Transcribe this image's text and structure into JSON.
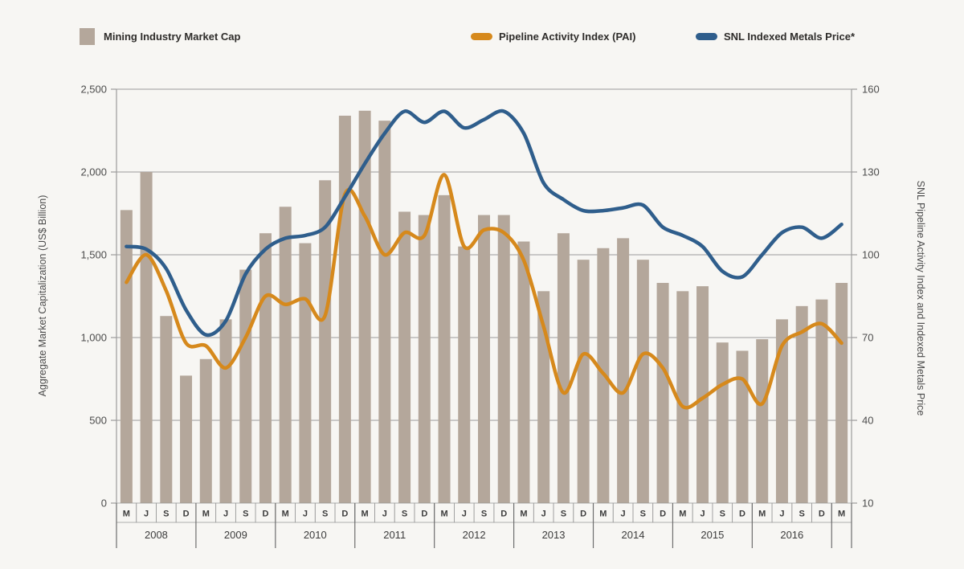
{
  "legend": {
    "items": [
      {
        "label": "Mining Industry Market Cap",
        "swatch": "square",
        "color": "#b4a79b"
      },
      {
        "label": "Pipeline Activity Index (PAI)",
        "swatch": "line",
        "color": "#d6891c"
      },
      {
        "label": "SNL Indexed Metals Price*",
        "swatch": "line",
        "color": "#2f5e8c"
      }
    ]
  },
  "axes": {
    "left": {
      "title": "Aggregate Market Capitalization (US$ Billion)",
      "tick_labels": [
        "2,500",
        "2,000",
        "1,500",
        "1,000",
        "500",
        "0"
      ],
      "tick_values": [
        2500,
        2000,
        1500,
        1000,
        500,
        0
      ],
      "range": [
        0,
        2500
      ]
    },
    "right": {
      "title": "SNL Pipeline Activity Index and Indexed Metals Price",
      "tick_labels": [
        "160",
        "130",
        "100",
        "70",
        "40",
        "10"
      ],
      "tick_values": [
        160,
        130,
        100,
        70,
        40,
        10
      ],
      "range": [
        10,
        160
      ]
    }
  },
  "colors": {
    "background": "#f7f6f3",
    "gridline": "#9b9b9b",
    "plot_border": "#9b9b9b",
    "bar": "#b4a79b",
    "pai_line": "#d6891c",
    "metals_line": "#2f5e8c",
    "cell_border": "#9b9b9b",
    "year_separator": "#6e6e6e",
    "axis_text": "#4c4c4c",
    "label_text": "#3c3c3c"
  },
  "chart_data": {
    "type": "combo-bar-line",
    "x_quarter_labels": [
      "M",
      "J",
      "S",
      "D",
      "M",
      "J",
      "S",
      "D",
      "M",
      "J",
      "S",
      "D",
      "M",
      "J",
      "S",
      "D",
      "M",
      "J",
      "S",
      "D",
      "M",
      "J",
      "S",
      "D",
      "M",
      "J",
      "S",
      "D",
      "M",
      "J",
      "S",
      "D",
      "M",
      "J",
      "S",
      "D",
      "M"
    ],
    "x_years": [
      "2008",
      "2009",
      "2010",
      "2011",
      "2012",
      "2013",
      "2014",
      "2015",
      "2016"
    ],
    "quarters_per_year": 4,
    "left_axis_label": "Aggregate Market Capitalization (US$ Billion)",
    "right_axis_label": "SNL Pipeline Activity Index and Indexed Metals Price",
    "left_axis_range": [
      0,
      2500
    ],
    "right_axis_range": [
      10,
      160
    ],
    "grid": true,
    "legend_position": "top",
    "series": [
      {
        "name": "Mining Industry Market Cap",
        "type": "bar",
        "axis": "left",
        "color": "#b4a79b",
        "values": [
          1770,
          2000,
          1130,
          770,
          870,
          1110,
          1410,
          1630,
          1790,
          1570,
          1950,
          2340,
          2370,
          2310,
          1760,
          1740,
          1860,
          1550,
          1740,
          1740,
          1580,
          1280,
          1630,
          1470,
          1540,
          1600,
          1470,
          1330,
          1280,
          1310,
          970,
          920,
          990,
          1110,
          1190,
          1230,
          1330
        ]
      },
      {
        "name": "Pipeline Activity Index (PAI)",
        "type": "line",
        "axis": "right",
        "color": "#d6891c",
        "values": [
          90,
          100,
          87,
          68,
          67,
          59,
          70,
          85,
          82,
          84,
          78,
          122,
          114,
          100,
          108,
          107,
          129,
          103,
          109,
          108,
          98,
          74,
          50,
          64,
          57,
          50,
          64,
          59,
          45,
          48,
          53,
          55,
          46,
          67,
          72,
          75,
          68
        ]
      },
      {
        "name": "SNL Indexed Metals Price*",
        "type": "line",
        "axis": "right",
        "color": "#2f5e8c",
        "values": [
          103,
          102,
          95,
          80,
          71,
          76,
          93,
          102,
          106,
          107,
          110,
          121,
          133,
          144,
          152,
          148,
          152,
          146,
          149,
          152,
          144,
          126,
          120,
          116,
          116,
          117,
          118,
          110,
          107,
          103,
          94,
          92,
          100,
          108,
          110,
          106,
          111
        ]
      }
    ]
  }
}
